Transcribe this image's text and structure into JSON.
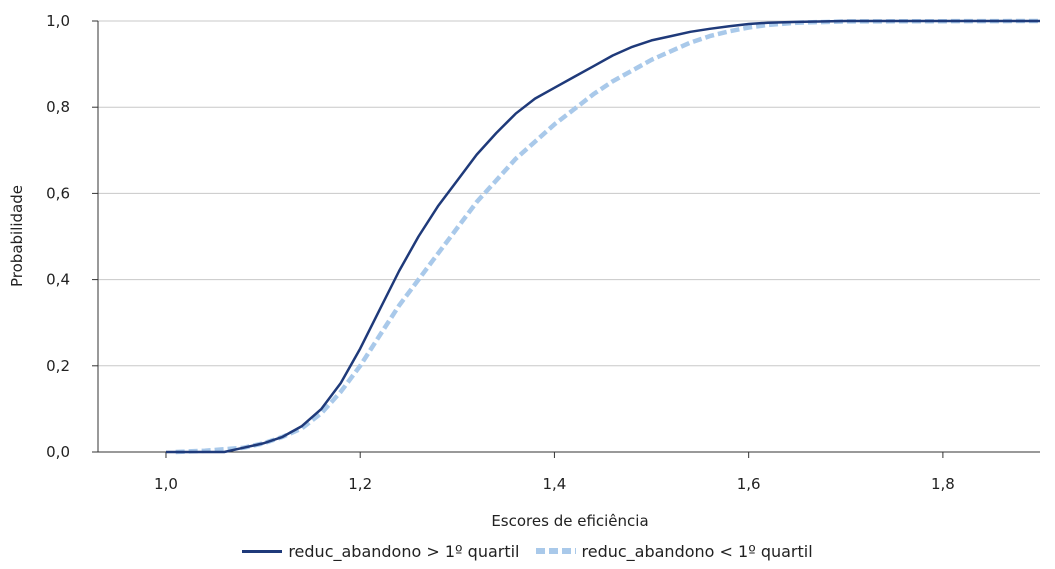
{
  "chart_data": {
    "type": "line",
    "xlabel": "Escores de eficiência",
    "ylabel": "Probabilidade",
    "xlim": [
      0.93,
      1.9
    ],
    "ylim": [
      0,
      1
    ],
    "x_ticks": [
      "1,0",
      "1,2",
      "1,4",
      "1,6",
      "1,8"
    ],
    "x_tick_values": [
      1.0,
      1.2,
      1.4,
      1.6,
      1.8
    ],
    "y_ticks": [
      "0,0",
      "0,2",
      "0,4",
      "0,6",
      "0,8",
      "1,0"
    ],
    "y_tick_values": [
      0.0,
      0.2,
      0.4,
      0.6,
      0.8,
      1.0
    ],
    "grid": "horizontal",
    "legend": "bottom",
    "series": [
      {
        "name": "reduc_abandono > 1º quartil",
        "color": "#1f3a7a",
        "style": "solid",
        "x": [
          1.0,
          1.06,
          1.08,
          1.1,
          1.12,
          1.14,
          1.16,
          1.18,
          1.2,
          1.22,
          1.24,
          1.26,
          1.28,
          1.3,
          1.32,
          1.34,
          1.36,
          1.38,
          1.4,
          1.42,
          1.44,
          1.46,
          1.48,
          1.5,
          1.52,
          1.54,
          1.56,
          1.58,
          1.6,
          1.62,
          1.65,
          1.7,
          1.9
        ],
        "y": [
          0.0,
          0.0,
          0.01,
          0.02,
          0.035,
          0.06,
          0.1,
          0.16,
          0.24,
          0.33,
          0.42,
          0.5,
          0.57,
          0.63,
          0.69,
          0.74,
          0.785,
          0.82,
          0.845,
          0.87,
          0.895,
          0.92,
          0.94,
          0.955,
          0.965,
          0.975,
          0.982,
          0.988,
          0.993,
          0.996,
          0.998,
          1.0,
          1.0
        ]
      },
      {
        "name": "reduc_abandono < 1º quartil",
        "color": "#a9c9ea",
        "style": "dashed",
        "x": [
          1.01,
          1.04,
          1.08,
          1.1,
          1.12,
          1.14,
          1.16,
          1.18,
          1.2,
          1.22,
          1.24,
          1.26,
          1.28,
          1.3,
          1.32,
          1.34,
          1.36,
          1.38,
          1.4,
          1.42,
          1.44,
          1.46,
          1.48,
          1.5,
          1.52,
          1.54,
          1.56,
          1.58,
          1.6,
          1.62,
          1.65,
          1.7,
          1.9
        ],
        "y": [
          0.0,
          0.003,
          0.01,
          0.02,
          0.035,
          0.055,
          0.09,
          0.14,
          0.2,
          0.27,
          0.34,
          0.4,
          0.46,
          0.52,
          0.58,
          0.63,
          0.68,
          0.72,
          0.76,
          0.795,
          0.83,
          0.86,
          0.885,
          0.91,
          0.93,
          0.95,
          0.965,
          0.976,
          0.985,
          0.991,
          0.996,
          0.999,
          1.0
        ]
      }
    ]
  }
}
